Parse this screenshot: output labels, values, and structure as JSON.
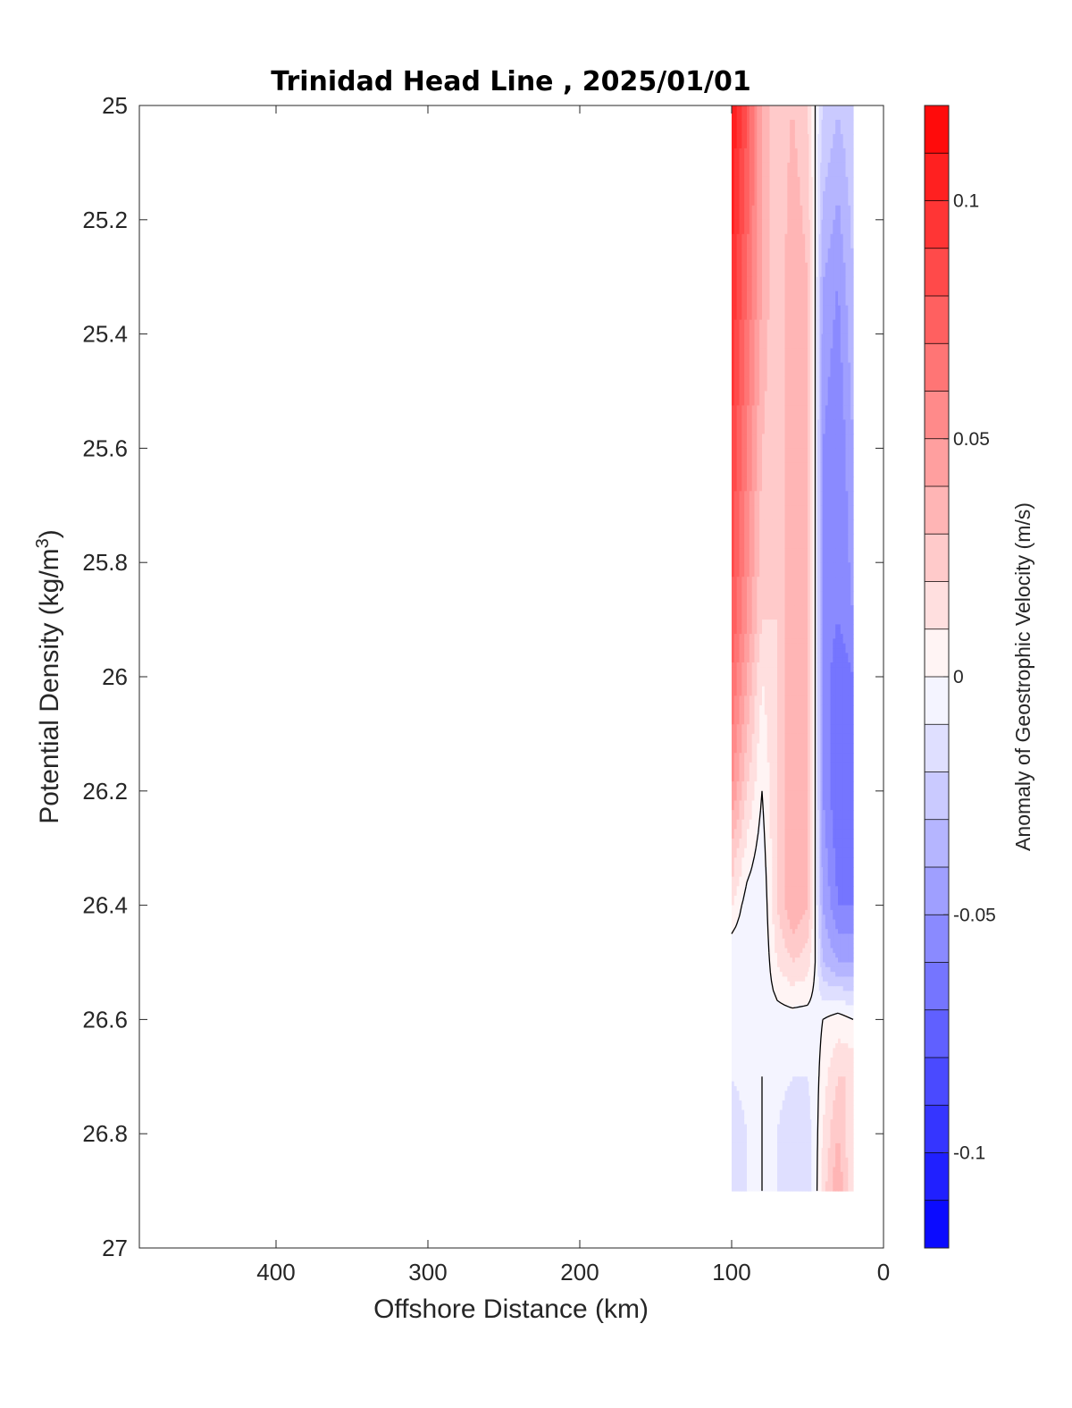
{
  "chart_data": {
    "type": "heatmap",
    "subtype": "filled-contour section",
    "title": "Trinidad Head Line , 2025/01/01",
    "xlabel": "Offshore Distance (km)",
    "ylabel": {
      "main": "Potential Density (kg/m",
      "superscript": "3",
      "close": ")"
    },
    "colorbar_label": "Anomaly of Geostrophic Velocity (m/s)",
    "xlim": [
      490,
      0
    ],
    "x_reversed": true,
    "ylim": [
      27,
      25
    ],
    "y_reversed": true,
    "x_ticks": [
      {
        "value": 400,
        "label": "400"
      },
      {
        "value": 300,
        "label": "300"
      },
      {
        "value": 200,
        "label": "200"
      },
      {
        "value": 100,
        "label": "100"
      },
      {
        "value": 0,
        "label": "0"
      }
    ],
    "y_ticks": [
      {
        "value": 25,
        "label": "25"
      },
      {
        "value": 25.2,
        "label": "25.2"
      },
      {
        "value": 25.4,
        "label": "25.4"
      },
      {
        "value": 25.6,
        "label": "25.6"
      },
      {
        "value": 25.8,
        "label": "25.8"
      },
      {
        "value": 26,
        "label": "26"
      },
      {
        "value": 26.2,
        "label": "26.2"
      },
      {
        "value": 26.4,
        "label": "26.4"
      },
      {
        "value": 26.6,
        "label": "26.6"
      },
      {
        "value": 26.8,
        "label": "26.8"
      },
      {
        "value": 27,
        "label": "27"
      }
    ],
    "colorbar": {
      "clim": [
        -0.12,
        0.12
      ],
      "levels_step": 0.01,
      "colormap": "blue-white-red",
      "ticks": [
        {
          "value": 0.1,
          "label": "0.1"
        },
        {
          "value": 0.05,
          "label": "0.05"
        },
        {
          "value": 0,
          "label": "0"
        },
        {
          "value": -0.05,
          "label": "-0.05"
        },
        {
          "value": -0.1,
          "label": "-0.1"
        }
      ]
    },
    "x_stations": [
      100,
      90,
      80,
      70,
      60,
      50,
      45,
      40,
      30,
      20
    ],
    "density_levels": [
      25.0,
      25.3,
      25.6,
      25.9,
      26.0,
      26.2,
      26.4,
      26.5,
      26.6,
      26.7,
      26.8,
      26.9
    ],
    "values": [
      [
        0.11,
        0.08,
        0.04,
        0.02,
        0.03,
        0.02,
        0.0,
        -0.02,
        -0.03,
        -0.02
      ],
      [
        0.1,
        0.07,
        0.04,
        0.02,
        0.04,
        0.03,
        0.0,
        -0.04,
        -0.05,
        -0.03
      ],
      [
        0.09,
        0.06,
        0.03,
        0.02,
        0.04,
        0.03,
        0.0,
        -0.05,
        -0.06,
        -0.04
      ],
      [
        0.08,
        0.05,
        0.02,
        0.02,
        0.04,
        0.03,
        0.0,
        -0.05,
        -0.06,
        -0.05
      ],
      [
        0.07,
        0.04,
        0.01,
        0.02,
        0.04,
        0.03,
        0.0,
        -0.05,
        -0.07,
        -0.06
      ],
      [
        0.05,
        0.02,
        0.0,
        0.02,
        0.04,
        0.03,
        0.0,
        -0.05,
        -0.07,
        -0.06
      ],
      [
        0.01,
        -0.005,
        -0.01,
        0.02,
        0.04,
        0.03,
        0.0,
        -0.04,
        -0.06,
        -0.06
      ],
      [
        -0.01,
        -0.01,
        -0.01,
        0.01,
        0.02,
        0.015,
        0.0,
        -0.03,
        -0.04,
        -0.04
      ],
      [
        -0.01,
        -0.01,
        -0.005,
        -0.005,
        -0.005,
        -0.005,
        -0.005,
        0.0,
        0.005,
        0.0
      ],
      [
        -0.01,
        -0.005,
        0.0,
        -0.005,
        -0.01,
        -0.01,
        -0.005,
        0.005,
        0.02,
        0.02
      ],
      [
        -0.02,
        -0.01,
        0.0,
        -0.01,
        -0.02,
        -0.015,
        -0.005,
        0.01,
        0.03,
        0.01
      ],
      [
        -0.02,
        -0.01,
        0.0,
        -0.01,
        -0.02,
        -0.015,
        -0.005,
        0.015,
        0.04,
        0.01
      ]
    ]
  }
}
